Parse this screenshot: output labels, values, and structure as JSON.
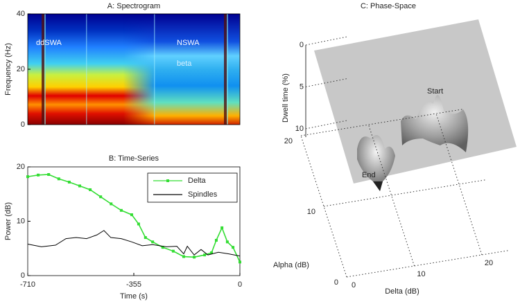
{
  "chart_data": [
    {
      "type": "heatmap",
      "title": "A: Spectrogram",
      "ylabel": "Frequency (Hz)",
      "ylim": [
        0,
        40
      ],
      "yticks": [
        0,
        20,
        40
      ],
      "annotations": [
        "ddSWA",
        "NSWA",
        "beta"
      ]
    },
    {
      "type": "line",
      "title": "B: Time-Series",
      "xlabel": "Time (s)",
      "ylabel": "Power (dB)",
      "xlim": [
        -710,
        0
      ],
      "xticks": [
        -710,
        -355,
        0
      ],
      "ylim": [
        0,
        20
      ],
      "yticks": [
        0,
        10,
        20
      ],
      "legend": "upper right",
      "series": [
        {
          "name": "Delta",
          "color": "#33dd33",
          "markers": true,
          "x": [
            -710,
            -675,
            -640,
            -606,
            -571,
            -536,
            -501,
            -466,
            -431,
            -397,
            -362,
            -339,
            -316,
            -292,
            -258,
            -223,
            -188,
            -153,
            -118,
            -95,
            -79,
            -60,
            -42,
            -23,
            0
          ],
          "values": [
            18.2,
            18.5,
            18.6,
            17.8,
            17.2,
            16.5,
            15.8,
            14.5,
            13.2,
            12,
            11.2,
            9.5,
            7,
            6.2,
            5.2,
            4.5,
            3.5,
            3.4,
            3.8,
            4.2,
            6.5,
            8.8,
            6.2,
            5.2,
            2.5
          ]
        },
        {
          "name": "Spindles",
          "color": "#000000",
          "markers": false,
          "x": [
            -710,
            -664,
            -617,
            -582,
            -548,
            -513,
            -478,
            -455,
            -432,
            -397,
            -362,
            -327,
            -292,
            -246,
            -211,
            -188,
            -176,
            -153,
            -130,
            -107,
            -72,
            -37,
            0
          ],
          "values": [
            5.8,
            5.3,
            5.6,
            6.8,
            7,
            6.8,
            7.5,
            8.3,
            7,
            6.8,
            6.2,
            5.5,
            5.7,
            5.3,
            5.4,
            4,
            5.4,
            3.8,
            4.8,
            3.8,
            4.3,
            4,
            3.6
          ]
        }
      ]
    },
    {
      "type": "surface3d",
      "title": "C: Phase-Space",
      "xlabel": "Delta (dB)",
      "ylabel": "Alpha (dB)",
      "zlabel": "Dwell time (%)",
      "xlim": [
        0,
        24
      ],
      "xticks": [
        0,
        10,
        20
      ],
      "ylim": [
        0,
        20
      ],
      "yticks": [
        0,
        10,
        20
      ],
      "zlim": [
        0,
        11
      ],
      "zticks": [
        0,
        5,
        10
      ],
      "annotations": [
        "Start",
        "End"
      ]
    }
  ]
}
